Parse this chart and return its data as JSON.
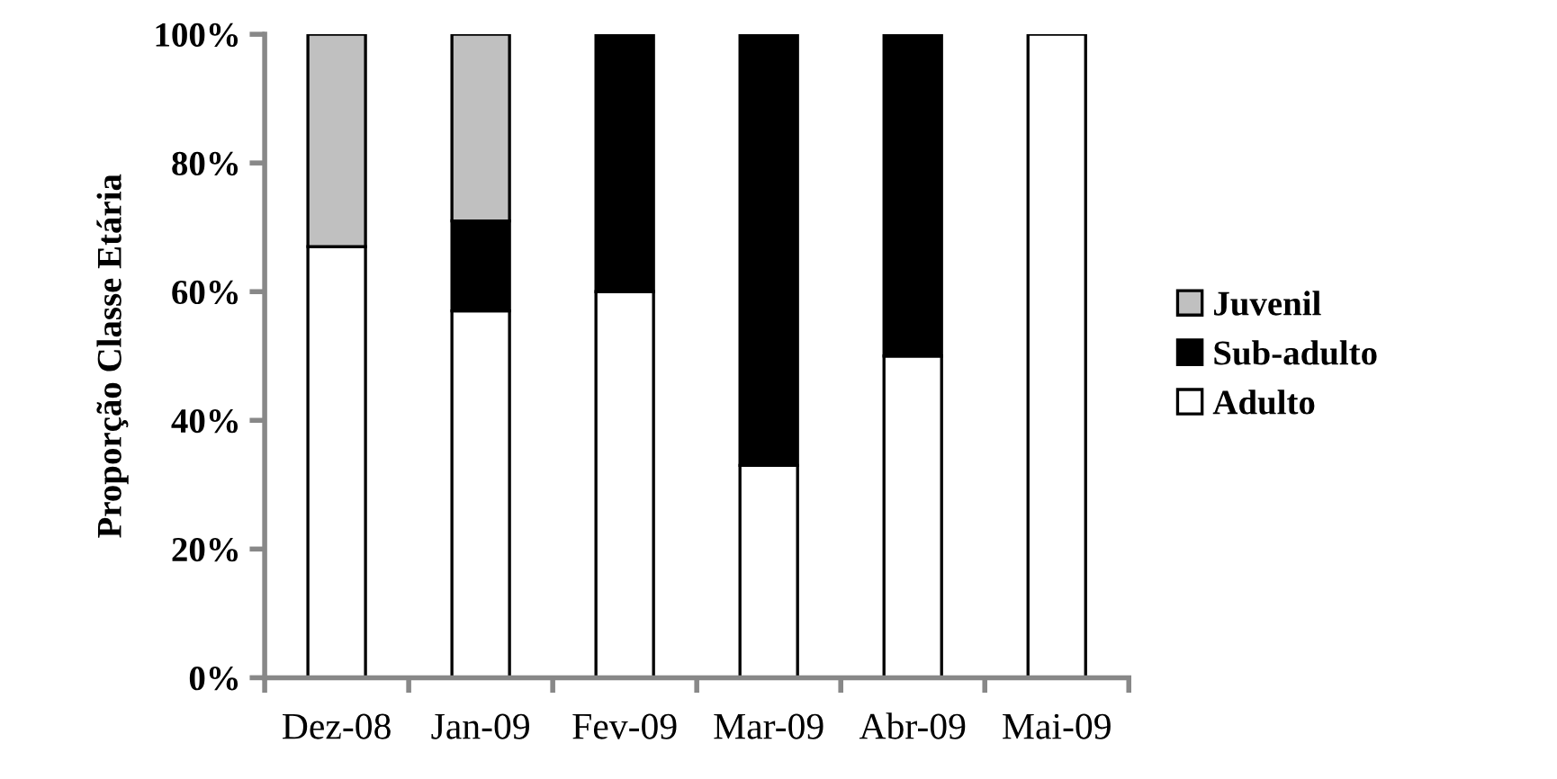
{
  "chart_data": {
    "type": "bar",
    "stacked": true,
    "ylabel": "Proporção Classe Etária",
    "categories": [
      "Dez-08",
      "Jan-09",
      "Fev-09",
      "Mar-09",
      "Abr-09",
      "Mai-09"
    ],
    "series": [
      {
        "name": "Adulto",
        "color": "#ffffff",
        "values": [
          67,
          57,
          60,
          33,
          50,
          100
        ]
      },
      {
        "name": "Sub-adulto",
        "color": "#000000",
        "values": [
          null,
          14,
          40,
          67,
          50,
          null
        ]
      },
      {
        "name": "Juvenil",
        "color": "#c0c0c0",
        "values": [
          33,
          29,
          null,
          null,
          null,
          null
        ]
      }
    ],
    "ylim": [
      0,
      100
    ],
    "yticks": [
      {
        "value": 0,
        "label": "0%"
      },
      {
        "value": 20,
        "label": "20%"
      },
      {
        "value": 40,
        "label": "40%"
      },
      {
        "value": 60,
        "label": "60%"
      },
      {
        "value": 80,
        "label": "80%"
      },
      {
        "value": 100,
        "label": "100%"
      }
    ],
    "legend": "right",
    "grid": false
  }
}
